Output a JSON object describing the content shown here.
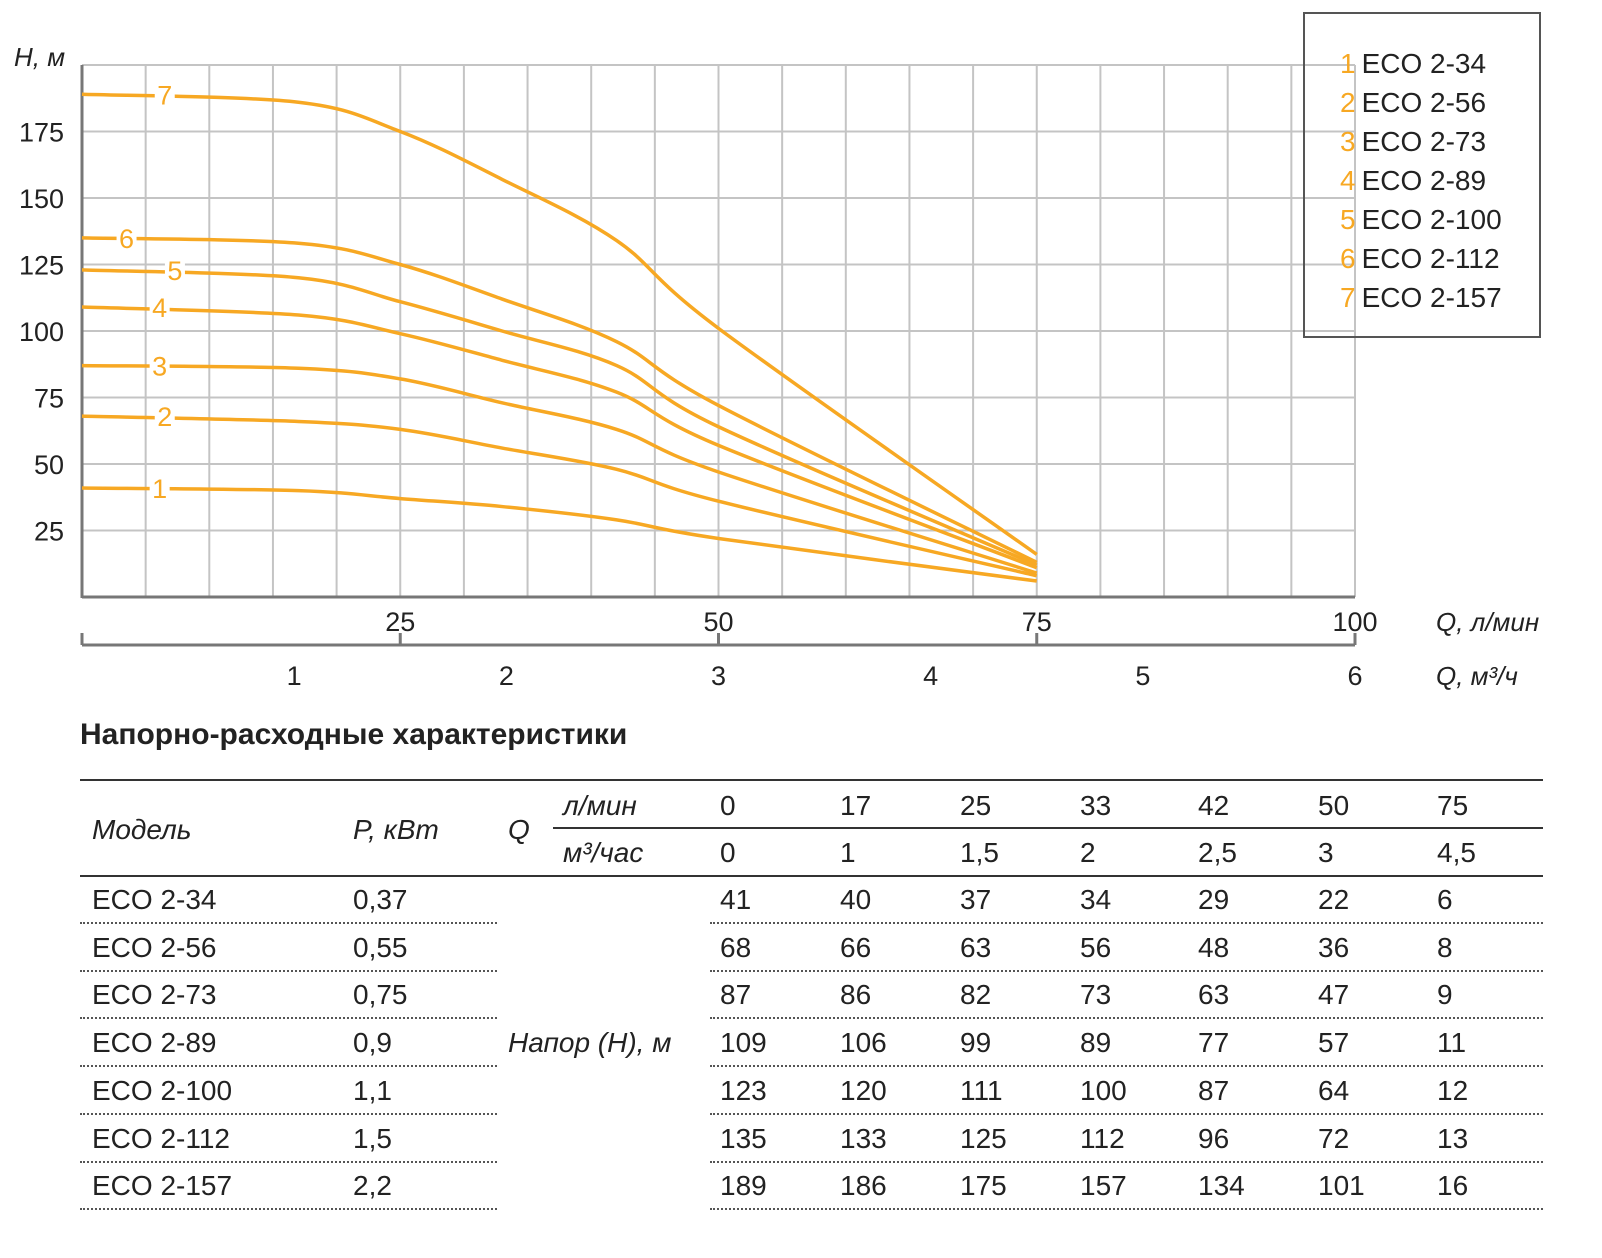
{
  "chart_data": {
    "type": "line",
    "ylabel": "H, м",
    "xlabel": "Q, л/мин",
    "x2label": "Q, м³/ч",
    "ylim": [
      0,
      200
    ],
    "xlim": [
      0,
      100
    ],
    "yticks": [
      25,
      50,
      75,
      100,
      125,
      150,
      175
    ],
    "xticks": [
      25,
      50,
      75,
      100
    ],
    "x2ticks": [
      1,
      2,
      3,
      4,
      5,
      6
    ],
    "grid": true,
    "color": "#F7A823",
    "legend_position": "top-right",
    "x": [
      0,
      17,
      25,
      33,
      42,
      50,
      75
    ],
    "series": [
      {
        "name": "1",
        "label": "ECO 2-34",
        "values": [
          41,
          40,
          37,
          34,
          29,
          22,
          6
        ]
      },
      {
        "name": "2",
        "label": "ECO 2-56",
        "values": [
          68,
          66,
          63,
          56,
          48,
          36,
          8
        ]
      },
      {
        "name": "3",
        "label": "ECO 2-73",
        "values": [
          87,
          86,
          82,
          73,
          63,
          47,
          9
        ]
      },
      {
        "name": "4",
        "label": "ECO 2-89",
        "values": [
          109,
          106,
          99,
          89,
          77,
          57,
          11
        ]
      },
      {
        "name": "5",
        "label": "ECO 2-100",
        "values": [
          123,
          120,
          111,
          100,
          87,
          64,
          12
        ]
      },
      {
        "name": "6",
        "label": "ECO 2-112",
        "values": [
          135,
          133,
          125,
          112,
          96,
          72,
          13
        ]
      },
      {
        "name": "7",
        "label": "ECO 2-157",
        "values": [
          189,
          186,
          175,
          157,
          134,
          101,
          16
        ]
      }
    ]
  },
  "table": {
    "title": "Напорно-расходные характеристики",
    "header": {
      "model": "Модель",
      "power": "P, кВт",
      "q": "Q",
      "unit_lmin": "л/мин",
      "unit_m3h": "м³/час",
      "q_lmin": [
        "0",
        "17",
        "25",
        "33",
        "42",
        "50",
        "75"
      ],
      "q_m3h": [
        "0",
        "1",
        "1,5",
        "2",
        "2,5",
        "3",
        "4,5"
      ]
    },
    "head_label": "Напор (Н), м",
    "rows": [
      {
        "model": "ECO 2-34",
        "power": "0,37",
        "head": [
          "41",
          "40",
          "37",
          "34",
          "29",
          "22",
          "6"
        ]
      },
      {
        "model": "ECO 2-56",
        "power": "0,55",
        "head": [
          "68",
          "66",
          "63",
          "56",
          "48",
          "36",
          "8"
        ]
      },
      {
        "model": "ECO 2-73",
        "power": "0,75",
        "head": [
          "87",
          "86",
          "82",
          "73",
          "63",
          "47",
          "9"
        ]
      },
      {
        "model": "ECO 2-89",
        "power": "0,9",
        "head": [
          "109",
          "106",
          "99",
          "89",
          "77",
          "57",
          "11"
        ]
      },
      {
        "model": "ECO 2-100",
        "power": "1,1",
        "head": [
          "123",
          "120",
          "111",
          "100",
          "87",
          "64",
          "12"
        ]
      },
      {
        "model": "ECO 2-112",
        "power": "1,5",
        "head": [
          "135",
          "133",
          "125",
          "112",
          "96",
          "72",
          "13"
        ]
      },
      {
        "model": "ECO 2-157",
        "power": "2,2",
        "head": [
          "189",
          "186",
          "175",
          "157",
          "134",
          "101",
          "16"
        ]
      }
    ]
  }
}
